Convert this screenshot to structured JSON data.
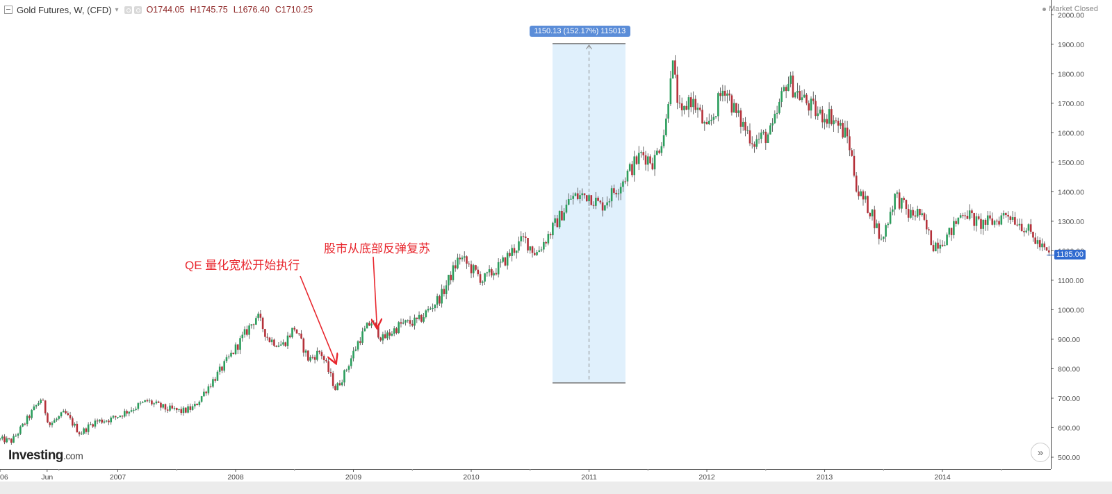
{
  "header": {
    "symbol": "Gold Futures, W, (CFD)",
    "open_label": "O",
    "open": "1744.05",
    "high_label": "H",
    "high": "1745.75",
    "low_label": "L",
    "low": "1676.40",
    "close_label": "C",
    "close": "1710.25",
    "market_status": "Market Closed"
  },
  "logo": {
    "name": "Investing",
    "suffix": ".com"
  },
  "scroll_button": {
    "label": "»"
  },
  "price_tag": "1185.00",
  "measure": {
    "label": "1150.13 (152.17%) 115013",
    "from": 752,
    "to": 1902
  },
  "annotations": [
    {
      "text": "QE 量化宽松开始执行"
    },
    {
      "text": "股市从底部反弹复苏"
    }
  ],
  "chart_data": {
    "type": "candlestick",
    "interval": "weekly",
    "title": "Gold Futures, W, (CFD)",
    "ylim": [
      460,
      2050
    ],
    "y_ticks": [
      "2000.00",
      "1900.00",
      "1800.00",
      "1700.00",
      "1600.00",
      "1500.00",
      "1400.00",
      "1300.00",
      "1200.00",
      "1100.00",
      "1000.00",
      "900.00",
      "800.00",
      "700.00",
      "600.00",
      "500.00"
    ],
    "x_ticks": [
      "06",
      "Jun",
      "2007",
      "2008",
      "2009",
      "2010",
      "2011",
      "2012",
      "2013",
      "2014"
    ],
    "x_tick_positions": [
      2006.0,
      2006.4,
      2007.0,
      2008.0,
      2009.0,
      2010.0,
      2011.0,
      2012.0,
      2013.0,
      2014.0
    ],
    "x_range": [
      2006.0,
      2014.92
    ],
    "price_anchors": [
      [
        2006.0,
        560
      ],
      [
        2006.1,
        555
      ],
      [
        2006.2,
        610
      ],
      [
        2006.35,
        700
      ],
      [
        2006.42,
        610
      ],
      [
        2006.55,
        650
      ],
      [
        2006.68,
        580
      ],
      [
        2006.8,
        620
      ],
      [
        2006.95,
        630
      ],
      [
        2007.1,
        660
      ],
      [
        2007.25,
        690
      ],
      [
        2007.4,
        665
      ],
      [
        2007.55,
        655
      ],
      [
        2007.65,
        670
      ],
      [
        2007.75,
        730
      ],
      [
        2007.9,
        810
      ],
      [
        2008.05,
        900
      ],
      [
        2008.18,
        980
      ],
      [
        2008.28,
        900
      ],
      [
        2008.4,
        880
      ],
      [
        2008.5,
        940
      ],
      [
        2008.62,
        830
      ],
      [
        2008.72,
        860
      ],
      [
        2008.85,
        730
      ],
      [
        2008.92,
        780
      ],
      [
        2009.05,
        900
      ],
      [
        2009.15,
        960
      ],
      [
        2009.25,
        900
      ],
      [
        2009.4,
        950
      ],
      [
        2009.55,
        960
      ],
      [
        2009.75,
        1050
      ],
      [
        2009.9,
        1180
      ],
      [
        2010.1,
        1100
      ],
      [
        2010.25,
        1150
      ],
      [
        2010.35,
        1200
      ],
      [
        2010.45,
        1240
      ],
      [
        2010.55,
        1190
      ],
      [
        2010.7,
        1280
      ],
      [
        2010.85,
        1380
      ],
      [
        2011.0,
        1390
      ],
      [
        2011.1,
        1350
      ],
      [
        2011.25,
        1420
      ],
      [
        2011.45,
        1530
      ],
      [
        2011.55,
        1500
      ],
      [
        2011.65,
        1620
      ],
      [
        2011.7,
        1850
      ],
      [
        2011.78,
        1640
      ],
      [
        2011.85,
        1720
      ],
      [
        2011.92,
        1680
      ],
      [
        2012.0,
        1600
      ],
      [
        2012.15,
        1760
      ],
      [
        2012.25,
        1660
      ],
      [
        2012.4,
        1570
      ],
      [
        2012.55,
        1600
      ],
      [
        2012.68,
        1780
      ],
      [
        2012.8,
        1720
      ],
      [
        2012.95,
        1660
      ],
      [
        2013.05,
        1660
      ],
      [
        2013.2,
        1580
      ],
      [
        2013.28,
        1400
      ],
      [
        2013.4,
        1330
      ],
      [
        2013.48,
        1230
      ],
      [
        2013.6,
        1390
      ],
      [
        2013.72,
        1320
      ],
      [
        2013.8,
        1330
      ],
      [
        2013.92,
        1220
      ],
      [
        2014.05,
        1250
      ],
      [
        2014.18,
        1340
      ],
      [
        2014.3,
        1290
      ],
      [
        2014.45,
        1300
      ],
      [
        2014.55,
        1330
      ],
      [
        2014.7,
        1280
      ],
      [
        2014.82,
        1220
      ],
      [
        2014.9,
        1185
      ]
    ],
    "up_color": "#2a9d5c",
    "down_color": "#b5313a",
    "measure_from": 752,
    "measure_to": 1902,
    "measure_change": 1150.13,
    "measure_change_pct": 152.17,
    "annotations": [
      "QE 量化宽松开始执行",
      "股市从底部反弹复苏"
    ],
    "last_price": 1185.0,
    "grid": false
  }
}
